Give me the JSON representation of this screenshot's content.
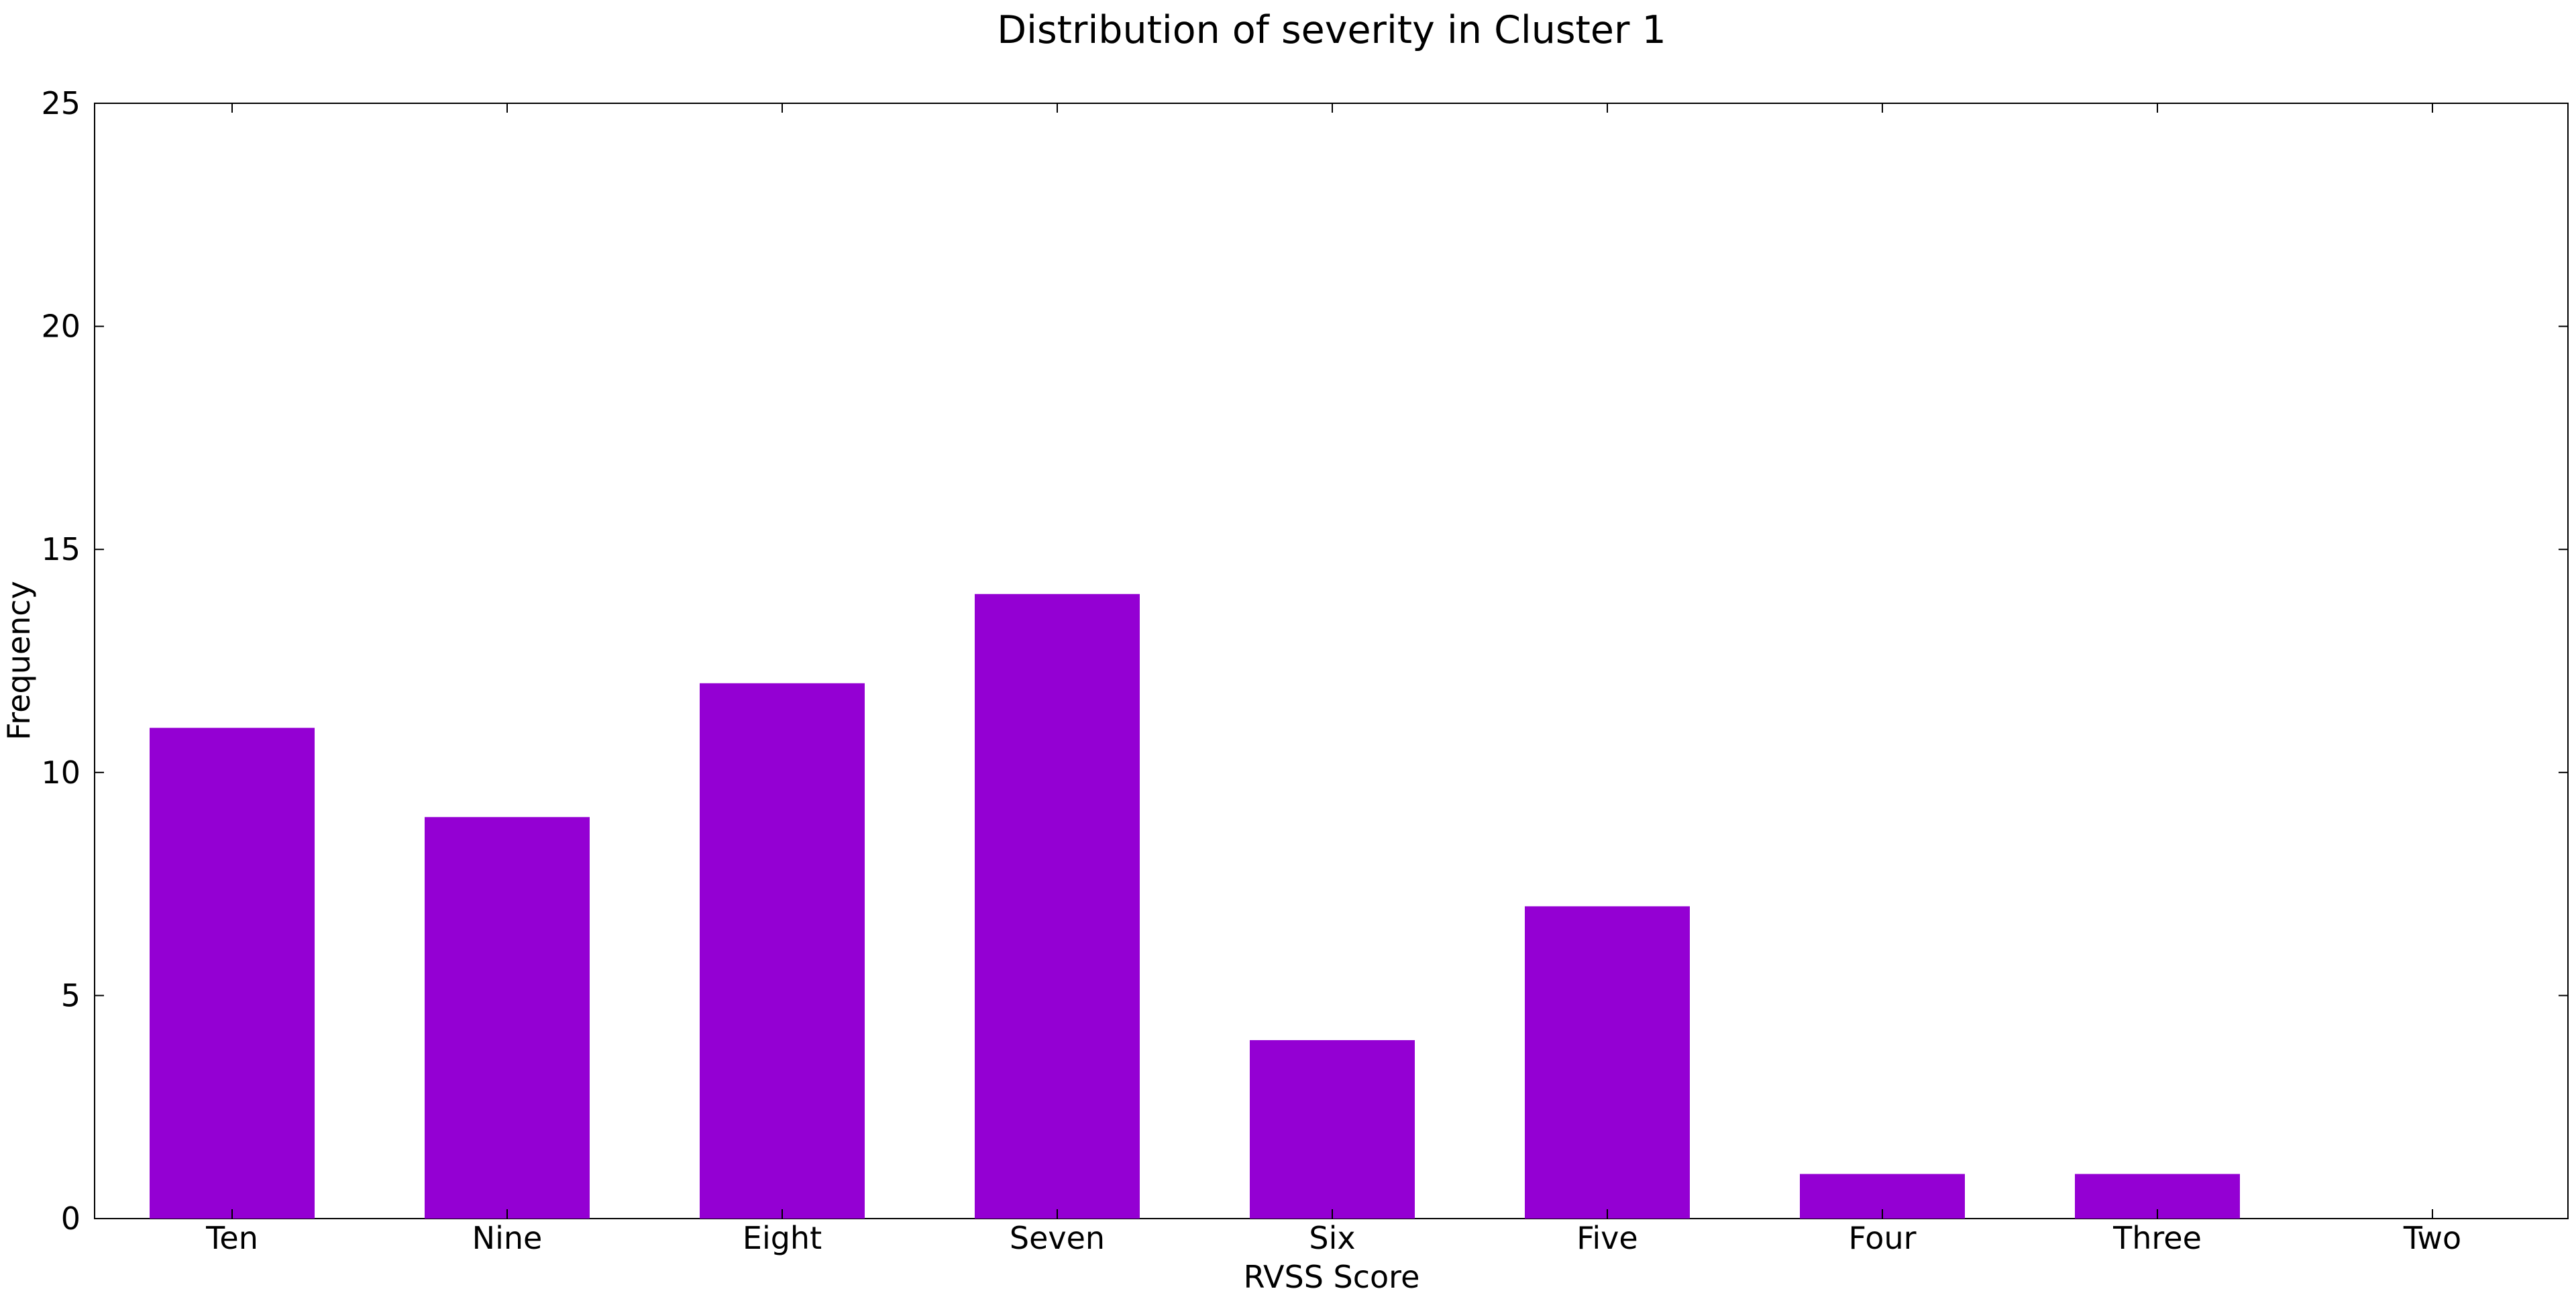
{
  "chart_data": {
    "type": "bar",
    "title": "Distribution of severity in Cluster 1",
    "xlabel": "RVSS Score",
    "ylabel": "Frequency",
    "categories": [
      "Ten",
      "Nine",
      "Eight",
      "Seven",
      "Six",
      "Five",
      "Four",
      "Three",
      "Two"
    ],
    "values": [
      11,
      9,
      12,
      14,
      4,
      7,
      1,
      1,
      0
    ],
    "ylim": [
      0,
      25
    ],
    "yticks": [
      0,
      5,
      10,
      15,
      20,
      25
    ],
    "bar_color": "#9400D3",
    "grid": false,
    "legend": "none"
  }
}
